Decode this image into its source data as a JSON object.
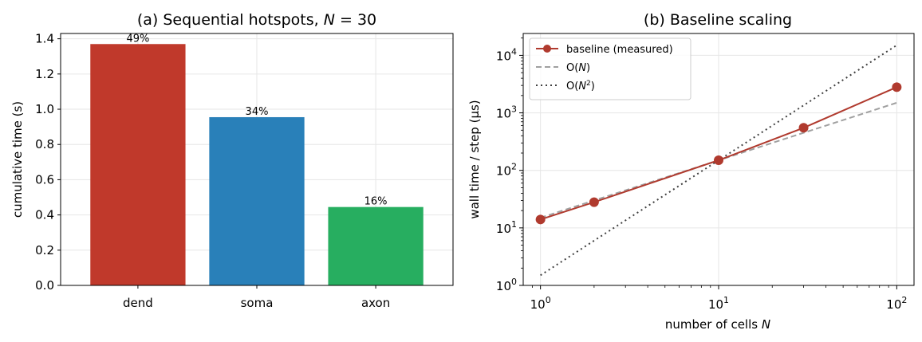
{
  "chart_data": [
    {
      "type": "bar",
      "title": "(a) Sequential hotspots, N = 30",
      "title_parts": {
        "prefix": "(a) Sequential hotspots, ",
        "var": "N",
        "suffix": " = 30"
      },
      "xlabel": "",
      "ylabel": "cumulative time (s)",
      "categories": [
        "dend",
        "soma",
        "axon"
      ],
      "values": [
        1.37,
        0.955,
        0.445
      ],
      "data_labels": [
        "49%",
        "34%",
        "16%"
      ],
      "colors": [
        "#c0392b",
        "#2980b9",
        "#27ae60"
      ],
      "ylim": [
        0,
        1.43
      ],
      "yticks": [
        0.0,
        0.2,
        0.4,
        0.6,
        0.8,
        1.0,
        1.2,
        1.4
      ],
      "ytick_labels": [
        "0.0",
        "0.2",
        "0.4",
        "0.6",
        "0.8",
        "1.0",
        "1.2",
        "1.4"
      ],
      "grid": true
    },
    {
      "type": "line",
      "title": "(b) Baseline scaling",
      "xlabel": "number of cells N",
      "xlabel_parts": {
        "prefix": "number of cells ",
        "var": "N"
      },
      "ylabel": "wall time / step (µs)",
      "xscale": "log",
      "yscale": "log",
      "xlim": [
        0.8,
        125
      ],
      "ylim": [
        1,
        24000
      ],
      "xtick_labels": [
        {
          "base": "10",
          "exp": "0"
        },
        {
          "base": "10",
          "exp": "1"
        },
        {
          "base": "10",
          "exp": "2"
        }
      ],
      "ytick_labels": [
        {
          "base": "10",
          "exp": "0"
        },
        {
          "base": "10",
          "exp": "1"
        },
        {
          "base": "10",
          "exp": "2"
        },
        {
          "base": "10",
          "exp": "3"
        },
        {
          "base": "10",
          "exp": "4"
        }
      ],
      "legend_position": "top-left",
      "grid": true,
      "series": [
        {
          "name": "baseline (measured)",
          "style": "solid-marker",
          "color": "#b03a2e",
          "x": [
            1,
            2,
            10,
            30,
            100
          ],
          "y": [
            14,
            28,
            150,
            550,
            2800
          ]
        },
        {
          "name": "O(N)",
          "name_parts": {
            "pre": "O(",
            "var": "N",
            "post": ")"
          },
          "style": "dashed",
          "color": "#a0a0a0",
          "x": [
            1,
            100
          ],
          "y": [
            15,
            1500
          ]
        },
        {
          "name": "O(N²)",
          "name_parts": {
            "pre": "O(",
            "var": "N",
            "sup": "2",
            "post": ")"
          },
          "style": "dotted",
          "color": "#404040",
          "x": [
            1,
            100
          ],
          "y": [
            1.5,
            15000
          ]
        }
      ]
    }
  ]
}
